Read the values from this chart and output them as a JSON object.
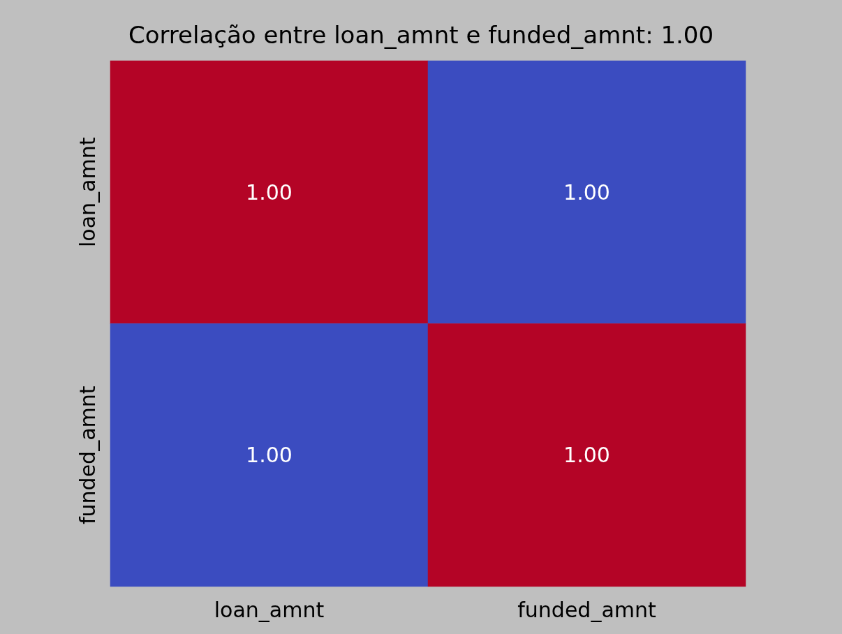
{
  "chart_data": {
    "type": "heatmap",
    "title": "Correlação entre loan_amnt e funded_amnt: 1.00",
    "categories": [
      "loan_amnt",
      "funded_amnt"
    ],
    "y_categories": [
      "loan_amnt",
      "funded_amnt"
    ],
    "cells": [
      [
        1.0,
        1.0
      ],
      [
        1.0,
        1.0
      ]
    ],
    "cell_labels": [
      [
        "1.00",
        "1.00"
      ],
      [
        "1.00",
        "1.00"
      ]
    ],
    "colors": [
      [
        "#b40426",
        "#3b4cc0"
      ],
      [
        "#3b4cc0",
        "#b40426"
      ]
    ]
  }
}
